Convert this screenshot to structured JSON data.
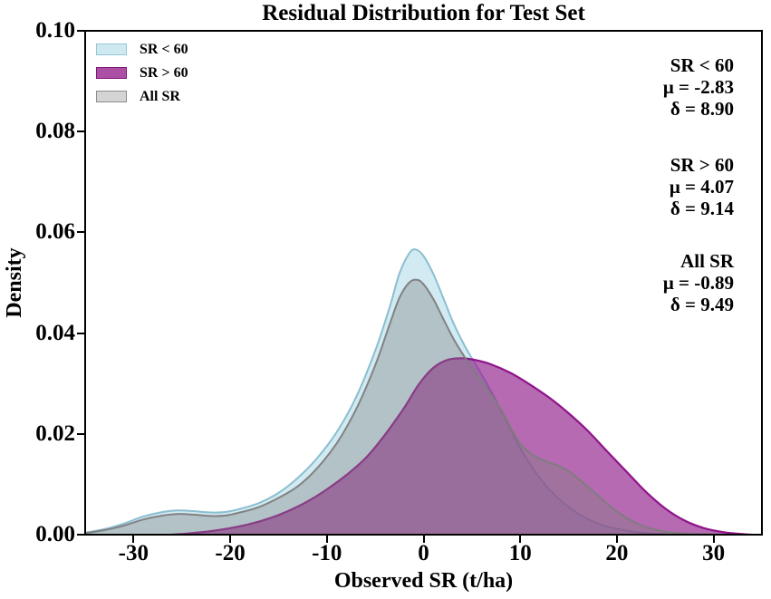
{
  "title": "Residual Distribution for Test Set",
  "chart_data": {
    "type": "area",
    "subtype": "kde-density",
    "title": "Residual Distribution for Test Set",
    "xlabel": "Observed SR (t/ha)",
    "ylabel": "Density",
    "xlim": [
      -35,
      35
    ],
    "ylim": [
      0,
      0.1
    ],
    "grid": false,
    "legend_position": "upper-left",
    "background": "#ffffff",
    "spine_color": "#000000",
    "x_ticks": [
      {
        "value": -30,
        "label": "-30"
      },
      {
        "value": -20,
        "label": "-20"
      },
      {
        "value": -10,
        "label": "-10"
      },
      {
        "value": 0,
        "label": "0"
      },
      {
        "value": 10,
        "label": "10"
      },
      {
        "value": 20,
        "label": "20"
      },
      {
        "value": 30,
        "label": "30"
      }
    ],
    "y_ticks": [
      {
        "value": 0.0,
        "label": "0.00"
      },
      {
        "value": 0.02,
        "label": "0.02"
      },
      {
        "value": 0.04,
        "label": "0.04"
      },
      {
        "value": 0.06,
        "label": "0.06"
      },
      {
        "value": 0.08,
        "label": "0.08"
      },
      {
        "value": 0.1,
        "label": "0.10"
      }
    ],
    "series": [
      {
        "name": "SR < 60",
        "fill": "rgba(173,216,230,0.55)",
        "stroke": "rgba(134,188,205,0.95)",
        "stroke_width": 2,
        "legend_fill": "#cfe9f1",
        "legend_border": "#96c7d6",
        "points": [
          [
            -35,
            0.0004
          ],
          [
            -33,
            0.0011
          ],
          [
            -31,
            0.0022
          ],
          [
            -29,
            0.0036
          ],
          [
            -27,
            0.0045
          ],
          [
            -25.5,
            0.0048
          ],
          [
            -24,
            0.0047
          ],
          [
            -22,
            0.0044
          ],
          [
            -20.5,
            0.0045
          ],
          [
            -19,
            0.0051
          ],
          [
            -17,
            0.0063
          ],
          [
            -15,
            0.0083
          ],
          [
            -13,
            0.0113
          ],
          [
            -11,
            0.0152
          ],
          [
            -9,
            0.0203
          ],
          [
            -7,
            0.0272
          ],
          [
            -5,
            0.0365
          ],
          [
            -3.5,
            0.0452
          ],
          [
            -2.5,
            0.0518
          ],
          [
            -1.5,
            0.0558
          ],
          [
            -0.8,
            0.0566
          ],
          [
            0,
            0.0553
          ],
          [
            1,
            0.0518
          ],
          [
            2,
            0.0472
          ],
          [
            3,
            0.0424
          ],
          [
            4,
            0.0384
          ],
          [
            5,
            0.035
          ],
          [
            6,
            0.0318
          ],
          [
            7,
            0.0284
          ],
          [
            8,
            0.0247
          ],
          [
            9,
            0.0209
          ],
          [
            10,
            0.0172
          ],
          [
            11.5,
            0.0126
          ],
          [
            13,
            0.009
          ],
          [
            15,
            0.0055
          ],
          [
            17,
            0.0031
          ],
          [
            19,
            0.0016
          ],
          [
            21,
            0.0008
          ],
          [
            23,
            0.0003
          ],
          [
            25,
            0.0001
          ]
        ]
      },
      {
        "name": "SR > 60",
        "fill": "rgba(148,36,141,0.68)",
        "stroke": "rgba(139,12,135,0.95)",
        "stroke_width": 2.2,
        "legend_fill": "#ab50a5",
        "legend_border": "#7e1578",
        "points": [
          [
            -26,
            0
          ],
          [
            -24,
            0.0003
          ],
          [
            -22,
            0.0007
          ],
          [
            -20,
            0.0013
          ],
          [
            -18,
            0.0021
          ],
          [
            -16,
            0.0032
          ],
          [
            -14,
            0.0047
          ],
          [
            -12,
            0.0066
          ],
          [
            -10,
            0.009
          ],
          [
            -8,
            0.0118
          ],
          [
            -6,
            0.0152
          ],
          [
            -4,
            0.0198
          ],
          [
            -2,
            0.0252
          ],
          [
            -0.5,
            0.0298
          ],
          [
            1,
            0.0331
          ],
          [
            2.5,
            0.0347
          ],
          [
            4,
            0.035
          ],
          [
            5.5,
            0.0346
          ],
          [
            7,
            0.0338
          ],
          [
            9,
            0.0321
          ],
          [
            11,
            0.0298
          ],
          [
            13,
            0.0272
          ],
          [
            15,
            0.0241
          ],
          [
            17,
            0.0206
          ],
          [
            19,
            0.0165
          ],
          [
            21,
            0.0125
          ],
          [
            23,
            0.0085
          ],
          [
            25,
            0.0052
          ],
          [
            27,
            0.0028
          ],
          [
            29,
            0.0013
          ],
          [
            31,
            0.0005
          ],
          [
            33,
            0.0001
          ],
          [
            34,
            0
          ]
        ]
      },
      {
        "name": "All SR",
        "fill": "rgba(128,128,128,0.38)",
        "stroke": "rgba(125,125,125,0.95)",
        "stroke_width": 2,
        "legend_fill": "#d4d4d4",
        "legend_border": "#8d8d8d",
        "points": [
          [
            -35,
            0.0003
          ],
          [
            -33,
            0.0009
          ],
          [
            -31,
            0.0018
          ],
          [
            -29,
            0.003
          ],
          [
            -27,
            0.0038
          ],
          [
            -25.5,
            0.0041
          ],
          [
            -24,
            0.004
          ],
          [
            -22,
            0.0037
          ],
          [
            -20.5,
            0.0038
          ],
          [
            -19,
            0.0044
          ],
          [
            -17,
            0.0055
          ],
          [
            -15,
            0.0073
          ],
          [
            -13,
            0.0096
          ],
          [
            -11,
            0.0132
          ],
          [
            -9,
            0.0181
          ],
          [
            -7,
            0.0248
          ],
          [
            -5,
            0.0336
          ],
          [
            -3.5,
            0.0418
          ],
          [
            -2.5,
            0.047
          ],
          [
            -1.5,
            0.05
          ],
          [
            -0.7,
            0.0506
          ],
          [
            0,
            0.0497
          ],
          [
            1,
            0.0468
          ],
          [
            2,
            0.043
          ],
          [
            3,
            0.0392
          ],
          [
            4,
            0.036
          ],
          [
            5,
            0.0331
          ],
          [
            6,
            0.0304
          ],
          [
            7,
            0.0277
          ],
          [
            8,
            0.0249
          ],
          [
            9,
            0.0213
          ],
          [
            10,
            0.0181
          ],
          [
            11,
            0.0162
          ],
          [
            12,
            0.0151
          ],
          [
            13,
            0.0143
          ],
          [
            14,
            0.0136
          ],
          [
            15,
            0.0126
          ],
          [
            16,
            0.0111
          ],
          [
            17,
            0.0095
          ],
          [
            18,
            0.0078
          ],
          [
            19,
            0.0061
          ],
          [
            20,
            0.0046
          ],
          [
            21.5,
            0.0028
          ],
          [
            23,
            0.0015
          ],
          [
            25,
            0.0006
          ],
          [
            27,
            0.0002
          ],
          [
            29,
            0.0001
          ],
          [
            31,
            0
          ]
        ]
      }
    ],
    "annotations": [
      {
        "group": "SR < 60",
        "mu": "μ = -2.83",
        "delta": "δ = 8.90"
      },
      {
        "group": "SR > 60",
        "mu": "μ = 4.07",
        "delta": "δ = 9.14"
      },
      {
        "group": "All SR",
        "mu": "μ = -0.89",
        "delta": "δ = 9.49"
      }
    ]
  }
}
